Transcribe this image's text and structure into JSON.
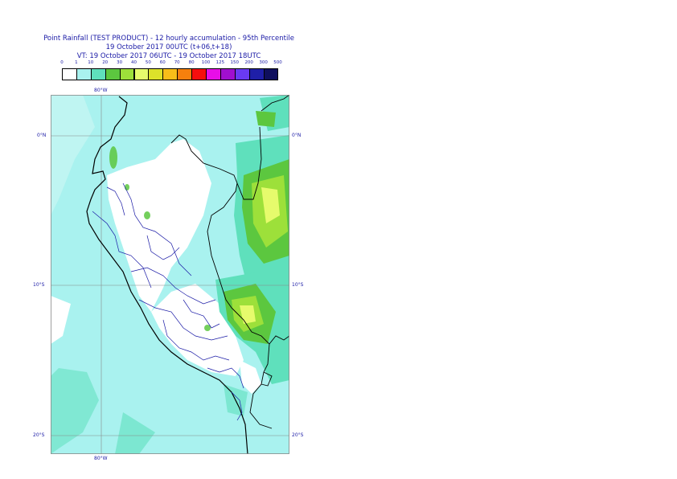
{
  "title": {
    "line1": "Point Rainfall (TEST PRODUCT) - 12 hourly accumulation - 95th Percentile",
    "line2": "19 October 2017 00UTC (t+06,t+18)",
    "line3": "VT: 19 October 2017 06UTC - 19 October 2017 18UTC"
  },
  "legend": {
    "ticks": [
      "0",
      "1",
      "10",
      "20",
      "30",
      "40",
      "50",
      "60",
      "70",
      "80",
      "100",
      "125",
      "150",
      "200",
      "300",
      "500"
    ],
    "colors": [
      "#ffffff",
      "#a9f2ef",
      "#5fe0bc",
      "#5cc73f",
      "#9de03a",
      "#e6fb6c",
      "#dce22a",
      "#f8be19",
      "#f6800d",
      "#f50e0e",
      "#e80ee8",
      "#a00fcf",
      "#6a3af3",
      "#1f1fa8",
      "#0f0f5e"
    ]
  },
  "map": {
    "labels": {
      "lon_top": "80°W",
      "lon_bottom": "80°W",
      "lat_0": "0°N",
      "lat_10": "10°S",
      "lat_20": "20°S"
    },
    "colors": {
      "background": "#a9f2ef",
      "land_light": "#ffffff",
      "med": "#5fe0bc",
      "green": "#5cc73f",
      "lime": "#9de03a",
      "yellow": "#e6fb6c",
      "border": "#000000",
      "region": "#1a1aa6",
      "grid": "#888888"
    }
  }
}
